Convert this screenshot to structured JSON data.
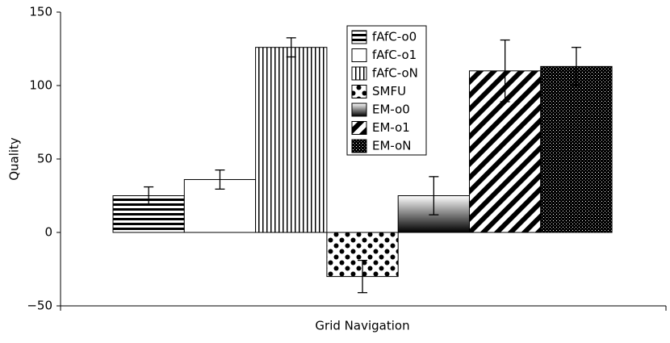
{
  "chart_data": {
    "type": "bar",
    "y_label": "Quality",
    "categories": [
      "Grid Navigation"
    ],
    "series": [
      {
        "name": "fAfC-o0",
        "pattern": "horizontal-lines",
        "values": [
          25
        ],
        "errors": [
          6
        ]
      },
      {
        "name": "fAfC-o1",
        "pattern": "blank",
        "values": [
          36
        ],
        "errors": [
          6.5
        ]
      },
      {
        "name": "fAfC-oN",
        "pattern": "vertical-lines",
        "values": [
          126
        ],
        "errors": [
          6.5
        ]
      },
      {
        "name": "SMFU",
        "pattern": "large-dots",
        "values": [
          -30
        ],
        "errors": [
          11
        ]
      },
      {
        "name": "EM-o0",
        "pattern": "gradient",
        "values": [
          25
        ],
        "errors": [
          13
        ]
      },
      {
        "name": "EM-o1",
        "pattern": "diagonal-lines",
        "values": [
          110
        ],
        "errors": [
          21
        ]
      },
      {
        "name": "EM-oN",
        "pattern": "dense-dots",
        "values": [
          113
        ],
        "errors": [
          13
        ]
      }
    ],
    "ylim": [
      -50,
      150
    ],
    "yticks": [
      {
        "value": -50,
        "label": "−50"
      },
      0,
      50,
      100,
      150
    ]
  }
}
